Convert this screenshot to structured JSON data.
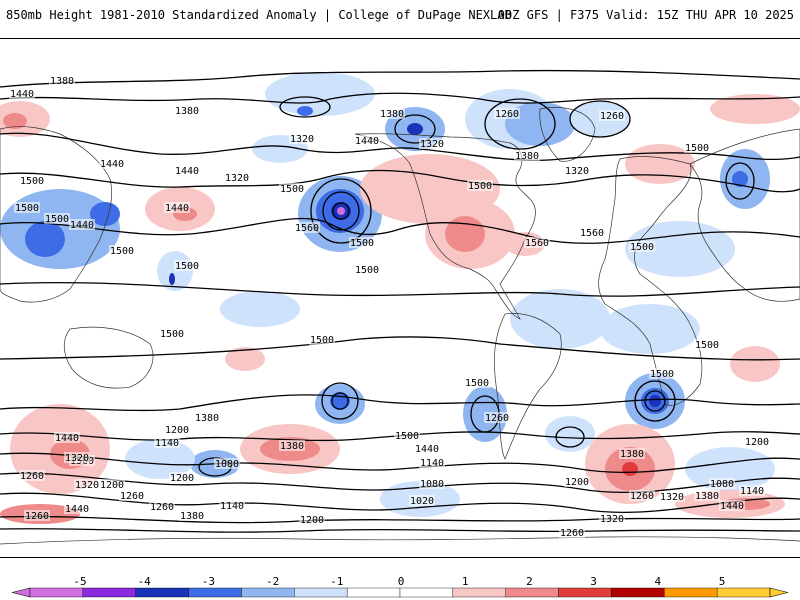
{
  "header": {
    "left_title": "850mb Height 1981-2010 Standardized Anomaly | College of DuPage NEXLAB",
    "right_title": "00Z GFS | F375 Valid: 15Z THU APR 10 2025"
  },
  "colorbar": {
    "ticks": [
      "-5",
      "-4",
      "-3",
      "-2",
      "-1",
      "0",
      "1",
      "2",
      "3",
      "4",
      "5"
    ],
    "colors": [
      "#d070e0",
      "#8a2be2",
      "#1a33b8",
      "#3e6be6",
      "#8fb6f0",
      "#cfe2fb",
      "#ffffff",
      "#ffffff",
      "#f9c6c6",
      "#ef8a8a",
      "#e03c3c",
      "#b00000",
      "#ff9900",
      "#ffcc33"
    ]
  },
  "contour_labels": [
    "1380",
    "1440",
    "1380",
    "1260",
    "1320",
    "1260",
    "1380",
    "1320",
    "1440",
    "1380",
    "1320",
    "1500",
    "1440",
    "1500",
    "1440",
    "1500",
    "1440",
    "1320",
    "1500",
    "1500",
    "1560",
    "1500",
    "1500",
    "1560",
    "1560",
    "1500",
    "1440",
    "1500",
    "1500",
    "1500",
    "1500",
    "1500",
    "1500",
    "1500",
    "1500",
    "1560",
    "1440",
    "1320",
    "1260",
    "1380",
    "1200",
    "1140",
    "1080",
    "1380",
    "1500",
    "1440",
    "1200",
    "1140",
    "1080",
    "1020",
    "1140",
    "1260",
    "1200",
    "1320",
    "1260",
    "1260",
    "1200",
    "1320",
    "1260",
    "1260",
    "1380",
    "1440",
    "1380",
    "1440",
    "1080",
    "1140",
    "1320",
    "1200",
    "1200",
    "1380",
    "1260"
  ],
  "legend_colors": {
    "neg_strong": "#1a33b8",
    "neg_mid": "#3e6be6",
    "neg_weak": "#cfe2fb",
    "pos_weak": "#f9c6c6",
    "pos_mid": "#ef8a8a",
    "pos_strong": "#e03c3c",
    "extreme_low": "#d070e0"
  }
}
